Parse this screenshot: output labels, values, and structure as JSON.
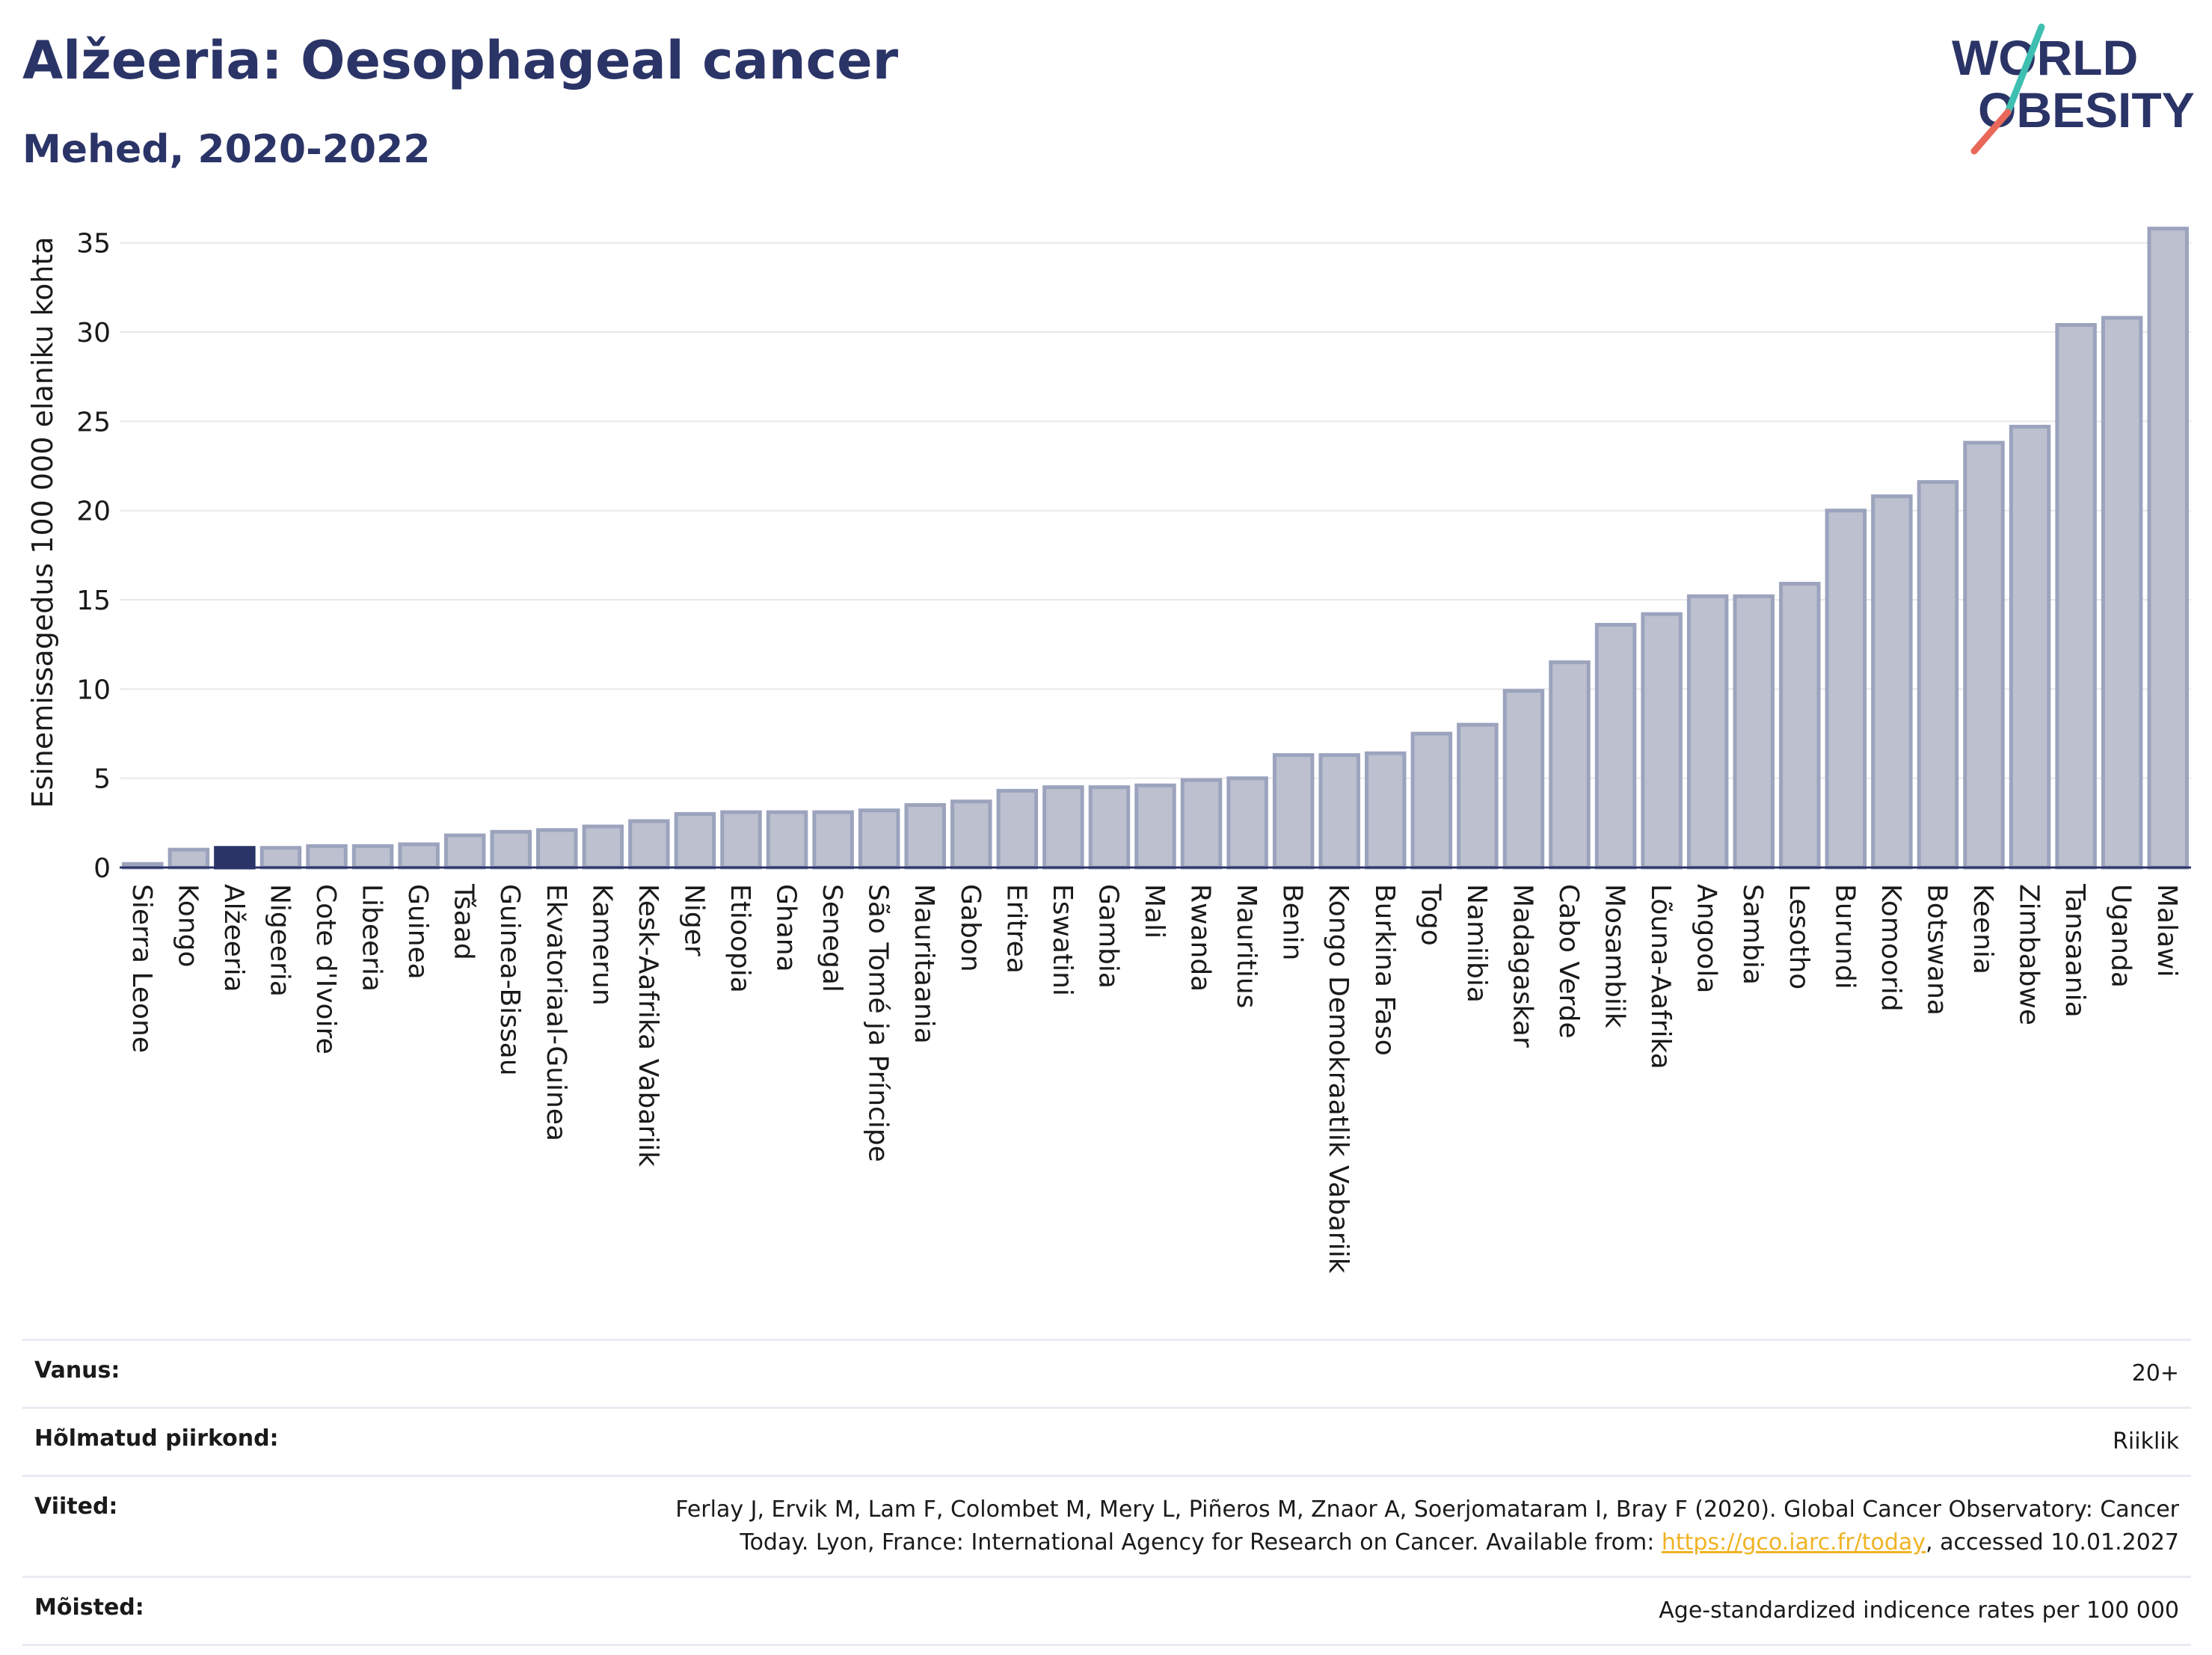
{
  "header": {
    "title": "Alžeeria: Oesophageal cancer",
    "subtitle": "Mehed, 2020-2022",
    "logo_line1": "WORLD",
    "logo_line2": "OBESITY"
  },
  "colors": {
    "bar_fill": "#bcc0cf",
    "bar_stroke": "#9ca3bd",
    "highlight": "#2b3467",
    "title": "#2b3467",
    "grid": "#e8e8ee",
    "logo_teal": "#3ebfb2",
    "logo_coral": "#e8695a",
    "link": "#f0b323"
  },
  "chart_data": {
    "type": "bar",
    "ylabel": "Esinemissagedus 100 000 elaniku kohta",
    "xlabel": "",
    "ylim": [
      0,
      37
    ],
    "yticks": [
      0,
      5,
      10,
      15,
      20,
      25,
      30,
      35
    ],
    "grid": true,
    "highlight_category": "Alžeeria",
    "categories": [
      "Sierra Leone",
      "Kongo",
      "Alžeeria",
      "Nigeeria",
      "Cote d'Ivoire",
      "Libeeria",
      "Guinea",
      "Tšaad",
      "Guinea-Bissau",
      "Ekvatoriaal-Guinea",
      "Kamerun",
      "Kesk-Aafrika Vabariik",
      "Niger",
      "Etioopia",
      "Ghana",
      "Senegal",
      "São Tomé ja Príncipe",
      "Mauritaania",
      "Gabon",
      "Eritrea",
      "Eswatini",
      "Gambia",
      "Mali",
      "Rwanda",
      "Mauritius",
      "Benin",
      "Kongo Demokraatlik Vabariik",
      "Burkina Faso",
      "Togo",
      "Namiibia",
      "Madagaskar",
      "Cabo Verde",
      "Mosambiik",
      "Lõuna-Aafrika",
      "Angoola",
      "Sambia",
      "Lesotho",
      "Burundi",
      "Komoorid",
      "Botswana",
      "Keenia",
      "Zimbabwe",
      "Tansaania",
      "Uganda",
      "Malawi"
    ],
    "values": [
      0.2,
      1.0,
      1.1,
      1.1,
      1.2,
      1.2,
      1.3,
      1.8,
      2.0,
      2.1,
      2.3,
      2.6,
      3.0,
      3.1,
      3.1,
      3.1,
      3.2,
      3.5,
      3.7,
      4.3,
      4.5,
      4.5,
      4.6,
      4.9,
      5.0,
      6.3,
      6.3,
      6.4,
      7.5,
      8.0,
      9.9,
      11.5,
      13.6,
      14.2,
      15.2,
      15.2,
      15.9,
      20.0,
      20.8,
      21.6,
      23.8,
      24.7,
      30.4,
      30.8,
      35.8
    ]
  },
  "info": {
    "age_label": "Vanus:",
    "age_value": "20+",
    "region_label": "Hõlmatud piirkond:",
    "region_value": "Riiklik",
    "refs_label": "Viited:",
    "refs_text_1": "Ferlay J, Ervik M, Lam F, Colombet M, Mery L, Piñeros M, Znaor A, Soerjomataram I, Bray F (2020). Global Cancer Observatory: Cancer Today. Lyon, France: International Agency for Research on Cancer. Available from: ",
    "refs_link": "https://gco.iarc.fr/today",
    "refs_text_2": ", accessed 10.01.2027",
    "def_label": "Mõisted:",
    "def_value": "Age-standardized indicence rates per 100 000"
  }
}
